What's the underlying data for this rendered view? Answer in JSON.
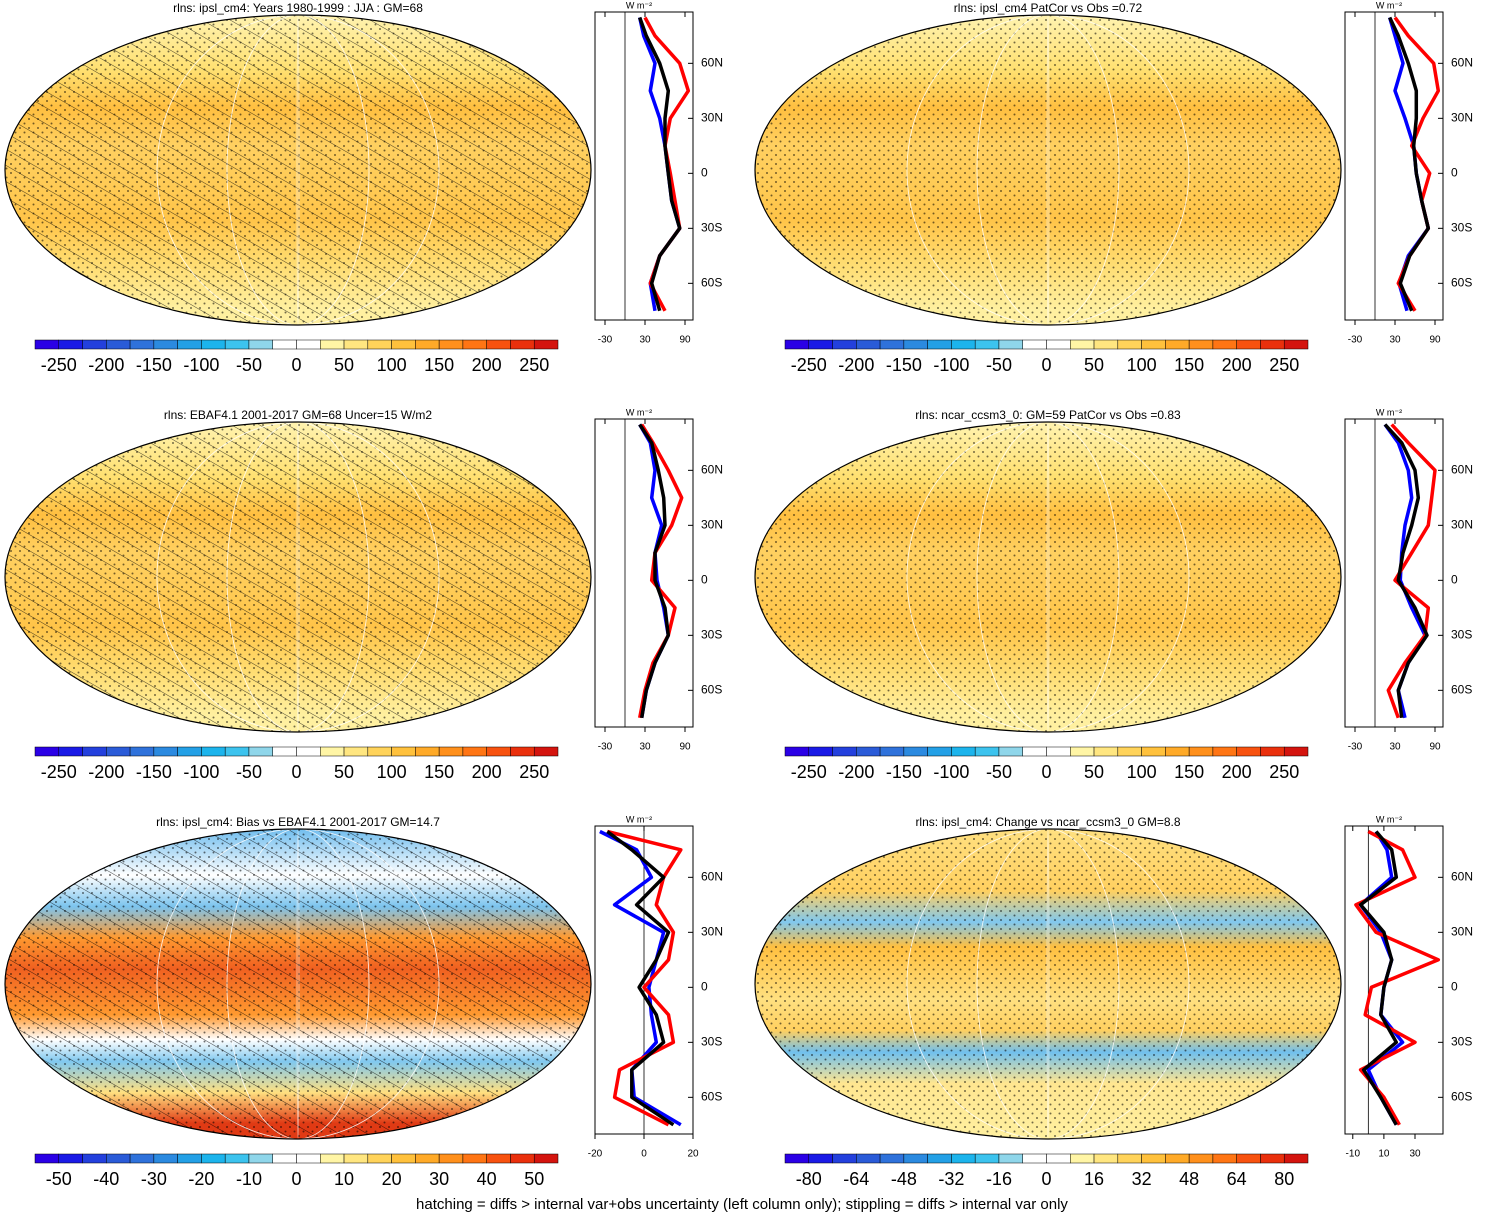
{
  "note": "hatching = diffs > internal var+obs uncertainty (left column only); stippling = diffs > internal var only",
  "chart_data": [
    {
      "type": "map",
      "title": "rlns: ipsl_cm4: Years 1980-1999 : JJA : GM=68",
      "hatching": true,
      "colorbar": {
        "lim": [
          -275,
          275
        ],
        "ticks": [
          -250,
          -200,
          -150,
          -100,
          -50,
          0,
          50,
          100,
          150,
          200,
          250
        ],
        "colors": [
          "#2a00e6",
          "#1a1ae6",
          "#2340dd",
          "#2a5bd8",
          "#2f72db",
          "#2b8ae0",
          "#23a0e6",
          "#1cb4ec",
          "#3cc3ee",
          "#8fd6ea",
          "#ffffff",
          "#ffffff",
          "#fff5a5",
          "#ffe680",
          "#ffd35a",
          "#ffc13c",
          "#ffaa28",
          "#ff901c",
          "#ff7514",
          "#f8520f",
          "#ea300c",
          "#d4140e"
        ]
      },
      "zonal": {
        "unit": "W m⁻²",
        "xlim": [
          -45,
          102
        ],
        "xticks": [
          -30,
          30,
          90
        ],
        "ylim": [
          -80,
          88
        ],
        "yticks": [
          {
            "value": 60,
            "label": "60N"
          },
          {
            "value": 30,
            "label": "30N"
          },
          0,
          {
            "value": -30,
            "label": "30S"
          },
          {
            "value": -60,
            "label": "60S"
          }
        ],
        "lat": [
          85,
          75,
          60,
          45,
          30,
          15,
          0,
          -15,
          -30,
          -45,
          -60,
          -75
        ],
        "series": [
          {
            "color": "#0000ff",
            "values": [
              22,
              28,
              45,
              38,
              52,
              60,
              65,
              70,
              82,
              52,
              38,
              45
            ]
          },
          {
            "color": "#ff0000",
            "values": [
              30,
              45,
              82,
              95,
              68,
              60,
              68,
              75,
              82,
              52,
              38,
              60
            ]
          },
          {
            "color": "#000000",
            "values": [
              22,
              32,
              52,
              65,
              60,
              60,
              65,
              70,
              82,
              52,
              40,
              52
            ]
          }
        ]
      }
    },
    {
      "type": "map",
      "title": "rlns: ipsl_cm4 PatCor vs Obs =0.72",
      "hatching": false,
      "colorbar": {
        "lim": [
          -275,
          275
        ],
        "ticks": [
          -250,
          -200,
          -150,
          -100,
          -50,
          0,
          50,
          100,
          150,
          200,
          250
        ],
        "colors": [
          "#2a00e6",
          "#1a1ae6",
          "#2340dd",
          "#2a5bd8",
          "#2f72db",
          "#2b8ae0",
          "#23a0e6",
          "#1cb4ec",
          "#3cc3ee",
          "#8fd6ea",
          "#ffffff",
          "#ffffff",
          "#fff5a5",
          "#ffe680",
          "#ffd35a",
          "#ffc13c",
          "#ffaa28",
          "#ff901c",
          "#ff7514",
          "#f8520f",
          "#ea300c",
          "#d4140e"
        ]
      },
      "zonal": {
        "unit": "W m⁻²",
        "xlim": [
          -45,
          102
        ],
        "xticks": [
          -30,
          30,
          90
        ],
        "ylim": [
          -80,
          88
        ],
        "yticks": [
          {
            "value": 60,
            "label": "60N"
          },
          {
            "value": 30,
            "label": "30N"
          },
          0,
          {
            "value": -30,
            "label": "30S"
          },
          {
            "value": -60,
            "label": "60S"
          }
        ],
        "lat": [
          85,
          75,
          60,
          45,
          30,
          15,
          0,
          -15,
          -30,
          -45,
          -60,
          -75
        ],
        "series": [
          {
            "color": "#0000ff",
            "values": [
              22,
              30,
              42,
              30,
              45,
              58,
              62,
              70,
              80,
              50,
              36,
              48
            ]
          },
          {
            "color": "#ff0000",
            "values": [
              30,
              50,
              88,
              95,
              72,
              55,
              82,
              70,
              80,
              52,
              35,
              60
            ]
          },
          {
            "color": "#000000",
            "values": [
              22,
              35,
              50,
              62,
              62,
              58,
              62,
              70,
              80,
              52,
              38,
              55
            ]
          }
        ]
      }
    },
    {
      "type": "map",
      "title": "rlns: EBAF4.1 2001-2017 GM=68 Uncer=15 W/m2",
      "hatching": true,
      "colorbar": {
        "lim": [
          -275,
          275
        ],
        "ticks": [
          -250,
          -200,
          -150,
          -100,
          -50,
          0,
          50,
          100,
          150,
          200,
          250
        ],
        "colors": [
          "#2a00e6",
          "#1a1ae6",
          "#2340dd",
          "#2a5bd8",
          "#2f72db",
          "#2b8ae0",
          "#23a0e6",
          "#1cb4ec",
          "#3cc3ee",
          "#8fd6ea",
          "#ffffff",
          "#ffffff",
          "#fff5a5",
          "#ffe680",
          "#ffd35a",
          "#ffc13c",
          "#ffaa28",
          "#ff901c",
          "#ff7514",
          "#f8520f",
          "#ea300c",
          "#d4140e"
        ]
      },
      "zonal": {
        "unit": "W m⁻²",
        "xlim": [
          -45,
          102
        ],
        "xticks": [
          -30,
          30,
          90
        ],
        "ylim": [
          -80,
          88
        ],
        "yticks": [
          {
            "value": 60,
            "label": "60N"
          },
          {
            "value": 30,
            "label": "30N"
          },
          0,
          {
            "value": -30,
            "label": "30S"
          },
          {
            "value": -60,
            "label": "60S"
          }
        ],
        "lat": [
          85,
          75,
          60,
          45,
          30,
          15,
          0,
          -15,
          -30,
          -45,
          -60,
          -75
        ],
        "series": [
          {
            "color": "#0000ff",
            "values": [
              22,
              38,
              45,
              40,
              55,
              45,
              48,
              58,
              65,
              45,
              32,
              25
            ]
          },
          {
            "color": "#ff0000",
            "values": [
              25,
              42,
              65,
              85,
              70,
              45,
              40,
              75,
              65,
              42,
              30,
              22
            ]
          },
          {
            "color": "#000000",
            "values": [
              22,
              40,
              50,
              58,
              60,
              45,
              45,
              60,
              65,
              45,
              32,
              25
            ]
          }
        ]
      }
    },
    {
      "type": "map",
      "title": "rlns: ncar_ccsm3_0: GM=59 PatCor vs Obs =0.83",
      "hatching": false,
      "colorbar": {
        "lim": [
          -275,
          275
        ],
        "ticks": [
          -250,
          -200,
          -150,
          -100,
          -50,
          0,
          50,
          100,
          150,
          200,
          250
        ],
        "colors": [
          "#2a00e6",
          "#1a1ae6",
          "#2340dd",
          "#2a5bd8",
          "#2f72db",
          "#2b8ae0",
          "#23a0e6",
          "#1cb4ec",
          "#3cc3ee",
          "#8fd6ea",
          "#ffffff",
          "#ffffff",
          "#fff5a5",
          "#ffe680",
          "#ffd35a",
          "#ffc13c",
          "#ffaa28",
          "#ff901c",
          "#ff7514",
          "#f8520f",
          "#ea300c",
          "#d4140e"
        ]
      },
      "zonal": {
        "unit": "W m⁻²",
        "xlim": [
          -45,
          102
        ],
        "xticks": [
          -30,
          30,
          90
        ],
        "ylim": [
          -80,
          88
        ],
        "yticks": [
          {
            "value": 60,
            "label": "60N"
          },
          {
            "value": 30,
            "label": "30N"
          },
          0,
          {
            "value": -30,
            "label": "30S"
          },
          {
            "value": -60,
            "label": "60S"
          }
        ],
        "lat": [
          85,
          75,
          60,
          45,
          30,
          15,
          0,
          -15,
          -30,
          -45,
          -60,
          -75
        ],
        "series": [
          {
            "color": "#0000ff",
            "values": [
              15,
              35,
              50,
              55,
              45,
              40,
              38,
              55,
              75,
              50,
              35,
              45
            ]
          },
          {
            "color": "#ff0000",
            "values": [
              25,
              50,
              90,
              85,
              80,
              55,
              30,
              80,
              75,
              45,
              20,
              35
            ]
          },
          {
            "color": "#000000",
            "values": [
              15,
              40,
              60,
              65,
              55,
              42,
              35,
              60,
              78,
              50,
              35,
              40
            ]
          }
        ]
      }
    },
    {
      "type": "map",
      "title": "rlns: ipsl_cm4: Bias vs EBAF4.1 2001-2017 GM=14.7",
      "hatching": true,
      "colorbar": {
        "lim": [
          -55,
          55
        ],
        "ticks": [
          -50,
          -40,
          -30,
          -20,
          -10,
          0,
          10,
          20,
          30,
          40,
          50
        ],
        "colors": [
          "#2a00e6",
          "#1a1ae6",
          "#2340dd",
          "#2a5bd8",
          "#2f72db",
          "#2b8ae0",
          "#23a0e6",
          "#1cb4ec",
          "#3cc3ee",
          "#8fd6ea",
          "#ffffff",
          "#ffffff",
          "#fff5a5",
          "#ffe680",
          "#ffd35a",
          "#ffc13c",
          "#ffaa28",
          "#ff901c",
          "#ff7514",
          "#f8520f",
          "#ea300c",
          "#d4140e"
        ]
      },
      "zonal": {
        "unit": "W m⁻²",
        "xlim": [
          -20,
          20
        ],
        "xticks": [
          -20,
          0,
          20
        ],
        "ylim": [
          -80,
          88
        ],
        "yticks": [
          {
            "value": 60,
            "label": "60N"
          },
          {
            "value": 30,
            "label": "30N"
          },
          0,
          {
            "value": -30,
            "label": "30S"
          },
          {
            "value": -60,
            "label": "60S"
          }
        ],
        "lat": [
          85,
          75,
          60,
          45,
          30,
          15,
          0,
          -15,
          -30,
          -45,
          -60,
          -75
        ],
        "series": [
          {
            "color": "#0000ff",
            "values": [
              -18,
              -3,
              3,
              -12,
              8,
              5,
              2,
              3,
              5,
              -5,
              -4,
              15
            ]
          },
          {
            "color": "#ff0000",
            "values": [
              -15,
              15,
              8,
              5,
              12,
              10,
              0,
              10,
              12,
              -10,
              -12,
              10
            ]
          },
          {
            "color": "#000000",
            "values": [
              -15,
              -5,
              8,
              -3,
              10,
              5,
              -2,
              5,
              8,
              -5,
              -5,
              12
            ]
          }
        ]
      }
    },
    {
      "type": "map",
      "title": "rlns: ipsl_cm4: Change vs ncar_ccsm3_0 GM=8.8",
      "hatching": false,
      "colorbar": {
        "lim": [
          -88,
          88
        ],
        "ticks": [
          -80,
          -64,
          -48,
          -32,
          -16,
          0,
          16,
          32,
          48,
          64,
          80
        ],
        "colors": [
          "#2a00e6",
          "#1a1ae6",
          "#2340dd",
          "#2a5bd8",
          "#2f72db",
          "#2b8ae0",
          "#23a0e6",
          "#1cb4ec",
          "#3cc3ee",
          "#8fd6ea",
          "#ffffff",
          "#ffffff",
          "#fff5a5",
          "#ffe680",
          "#ffd35a",
          "#ffc13c",
          "#ffaa28",
          "#ff901c",
          "#ff7514",
          "#f8520f",
          "#ea300c",
          "#d4140e"
        ]
      },
      "zonal": {
        "unit": "W m⁻²",
        "xlim": [
          -15,
          48
        ],
        "xticks": [
          -10,
          10,
          30
        ],
        "ylim": [
          -80,
          88
        ],
        "yticks": [
          {
            "value": 60,
            "label": "60N"
          },
          {
            "value": 30,
            "label": "30N"
          },
          0,
          {
            "value": -30,
            "label": "30S"
          },
          {
            "value": -60,
            "label": "60S"
          }
        ],
        "lat": [
          85,
          75,
          60,
          45,
          30,
          15,
          0,
          -15,
          -30,
          -45,
          -60,
          -75
        ],
        "series": [
          {
            "color": "#0000ff",
            "values": [
              5,
              12,
              15,
              -5,
              8,
              15,
              10,
              8,
              22,
              0,
              8,
              18
            ]
          },
          {
            "color": "#ff0000",
            "values": [
              0,
              22,
              30,
              -8,
              5,
              45,
              2,
              -2,
              30,
              -5,
              10,
              20
            ]
          },
          {
            "color": "#000000",
            "values": [
              5,
              15,
              18,
              -5,
              10,
              15,
              10,
              8,
              18,
              -3,
              8,
              18
            ]
          }
        ]
      }
    }
  ]
}
